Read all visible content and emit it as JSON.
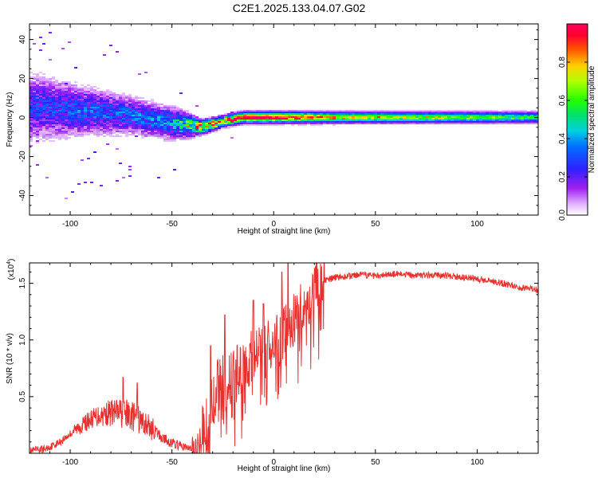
{
  "title": "C2E1.2025.133.04.07.G02",
  "colors": {
    "snr_line": "#e8312e",
    "axis": "#000000"
  },
  "chart_data": [
    {
      "type": "heatmap",
      "xlabel": "Height of straight line (km)",
      "ylabel": "Frequency (Hz)",
      "xlim": [
        -120,
        130
      ],
      "ylim": [
        -50,
        48
      ],
      "x_ticks": [
        -100,
        -50,
        0,
        50,
        100
      ],
      "y_ticks": [
        -40,
        -20,
        0,
        20,
        40
      ],
      "colorbar": {
        "label": "Normalized spectral amplitude",
        "range": [
          0,
          1
        ],
        "ticks": [
          0.0,
          0.2,
          0.4,
          0.6,
          0.8
        ],
        "tick_labels": [
          "0.0",
          "0.2",
          "0.4",
          "0.6",
          "0.8"
        ],
        "colormap": "magenta-blue-cyan-green-yellow-red"
      },
      "trend": [
        {
          "x": -115,
          "f_center": 5,
          "spread": 14,
          "amplitude": 0.25
        },
        {
          "x": -90,
          "f_center": 3,
          "spread": 10,
          "amplitude": 0.3
        },
        {
          "x": -70,
          "f_center": 1,
          "spread": 8,
          "amplitude": 0.3
        },
        {
          "x": -50,
          "f_center": -3,
          "spread": 7,
          "amplitude": 0.35
        },
        {
          "x": -35,
          "f_center": -5,
          "spread": 3,
          "amplitude": 0.85
        },
        {
          "x": -25,
          "f_center": -2,
          "spread": 2.5,
          "amplitude": 0.8
        },
        {
          "x": -15,
          "f_center": 0,
          "spread": 2.5,
          "amplitude": 0.95
        },
        {
          "x": 0,
          "f_center": 0,
          "spread": 2.5,
          "amplitude": 0.95
        },
        {
          "x": 30,
          "f_center": 0,
          "spread": 2.5,
          "amplitude": 0.7
        },
        {
          "x": 130,
          "f_center": 0,
          "spread": 2.5,
          "amplitude": 0.5
        }
      ]
    },
    {
      "type": "line",
      "xlabel": "Height of straight line (km)",
      "ylabel": "SNR (10 * v/v)",
      "y_multiplier": "(x10",
      "y_multiplier_exp": "4",
      "xlim": [
        -120,
        130
      ],
      "ylim": [
        0,
        1.68
      ],
      "x_ticks": [
        -100,
        -50,
        0,
        50,
        100
      ],
      "y_ticks": [
        0.5,
        1.0,
        1.5
      ],
      "y_tick_labels": [
        "0.5",
        "1.0",
        "1.5"
      ],
      "series": [
        {
          "values": [
            [
              -120,
              0.02
            ],
            [
              -112,
              0.04
            ],
            [
              -105,
              0.1
            ],
            [
              -98,
              0.2
            ],
            [
              -90,
              0.3
            ],
            [
              -85,
              0.34
            ],
            [
              -80,
              0.36
            ],
            [
              -75,
              0.36
            ],
            [
              -70,
              0.33
            ],
            [
              -65,
              0.28
            ],
            [
              -60,
              0.22
            ],
            [
              -55,
              0.14
            ],
            [
              -50,
              0.09
            ],
            [
              -45,
              0.06
            ],
            [
              -40,
              0.04
            ],
            [
              -38,
              0.06
            ],
            [
              -35,
              0.25
            ],
            [
              -32,
              0.3
            ],
            [
              -30,
              0.45
            ],
            [
              -28,
              0.62
            ],
            [
              -25,
              0.66
            ],
            [
              -22,
              0.65
            ],
            [
              -20,
              0.72
            ],
            [
              -17,
              0.75
            ],
            [
              -15,
              0.78
            ],
            [
              -12,
              0.82
            ],
            [
              -10,
              0.86
            ],
            [
              -7,
              0.9
            ],
            [
              -5,
              0.88
            ],
            [
              -2,
              0.95
            ],
            [
              0,
              0.96
            ],
            [
              3,
              1.0
            ],
            [
              5,
              1.08
            ],
            [
              8,
              1.12
            ],
            [
              10,
              1.18
            ],
            [
              12,
              1.22
            ],
            [
              15,
              1.3
            ],
            [
              18,
              1.36
            ],
            [
              20,
              1.45
            ],
            [
              23,
              1.5
            ],
            [
              25,
              1.52
            ],
            [
              30,
              1.55
            ],
            [
              40,
              1.57
            ],
            [
              50,
              1.57
            ],
            [
              60,
              1.58
            ],
            [
              70,
              1.57
            ],
            [
              80,
              1.57
            ],
            [
              90,
              1.56
            ],
            [
              100,
              1.54
            ],
            [
              110,
              1.51
            ],
            [
              120,
              1.47
            ],
            [
              130,
              1.44
            ]
          ],
          "peaks": [
            [
              -74,
              0.67
            ],
            [
              -67,
              0.62
            ],
            [
              -31,
              0.95
            ],
            [
              -24,
              1.22
            ],
            [
              -10,
              1.35
            ],
            [
              -5,
              1.32
            ],
            [
              7,
              1.68
            ],
            [
              4,
              1.6
            ]
          ]
        }
      ]
    }
  ]
}
